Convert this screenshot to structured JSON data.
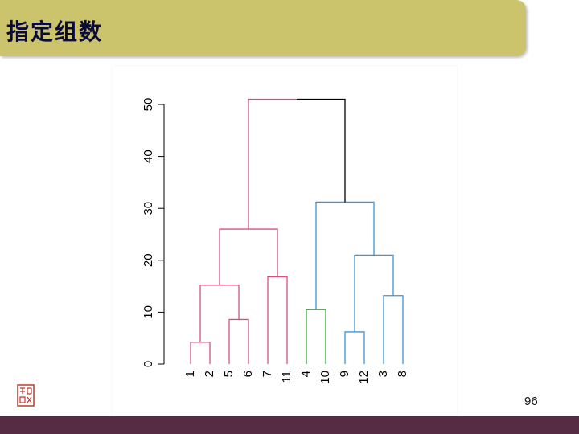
{
  "slide": {
    "title": "指定组数",
    "page_number": "96"
  },
  "colors": {
    "title_bar": "#cbc46c",
    "bottom_bar": "#562c45",
    "cluster_pink": "#d9517a",
    "cluster_green": "#3aa63a",
    "cluster_blue": "#3a96d6",
    "root": "#000000"
  },
  "chart_data": {
    "type": "dendrogram",
    "title": "",
    "xlabel": "",
    "ylabel": "",
    "ylim": [
      0,
      50
    ],
    "yticks": [
      0,
      10,
      20,
      30,
      40,
      50
    ],
    "leaf_order": [
      "1",
      "2",
      "5",
      "6",
      "7",
      "11",
      "4",
      "10",
      "9",
      "12",
      "3",
      "8"
    ],
    "merges": [
      {
        "left": "1",
        "right": "2",
        "height": 4.2,
        "color": "#d9517a"
      },
      {
        "left": "5",
        "right": "6",
        "height": 8.6,
        "color": "#d9517a"
      },
      {
        "left": "7",
        "right": "11",
        "height": 16.8,
        "color": "#d9517a"
      },
      {
        "left": "(1,2)",
        "right": "(5,6)",
        "height": 15.2,
        "color": "#d9517a"
      },
      {
        "left": "(1,2,5,6)",
        "right": "(7,11)",
        "height": 26.0,
        "color": "#d9517a"
      },
      {
        "left": "4",
        "right": "10",
        "height": 10.5,
        "color": "#3aa63a"
      },
      {
        "left": "9",
        "right": "12",
        "height": 6.2,
        "color": "#3a96d6"
      },
      {
        "left": "3",
        "right": "8",
        "height": 13.2,
        "color": "#3a96d6"
      },
      {
        "left": "(9,12)",
        "right": "(3,8)",
        "height": 21.0,
        "color": "#3a96d6"
      },
      {
        "left": "(4,10)",
        "right": "(9,12,3,8)",
        "height": 31.2,
        "color": "#3a96d6"
      },
      {
        "left": "(1,2,5,6,7,11)",
        "right": "(4,10,9,12,3,8)",
        "height": 51.0,
        "color": "#000000"
      }
    ]
  }
}
